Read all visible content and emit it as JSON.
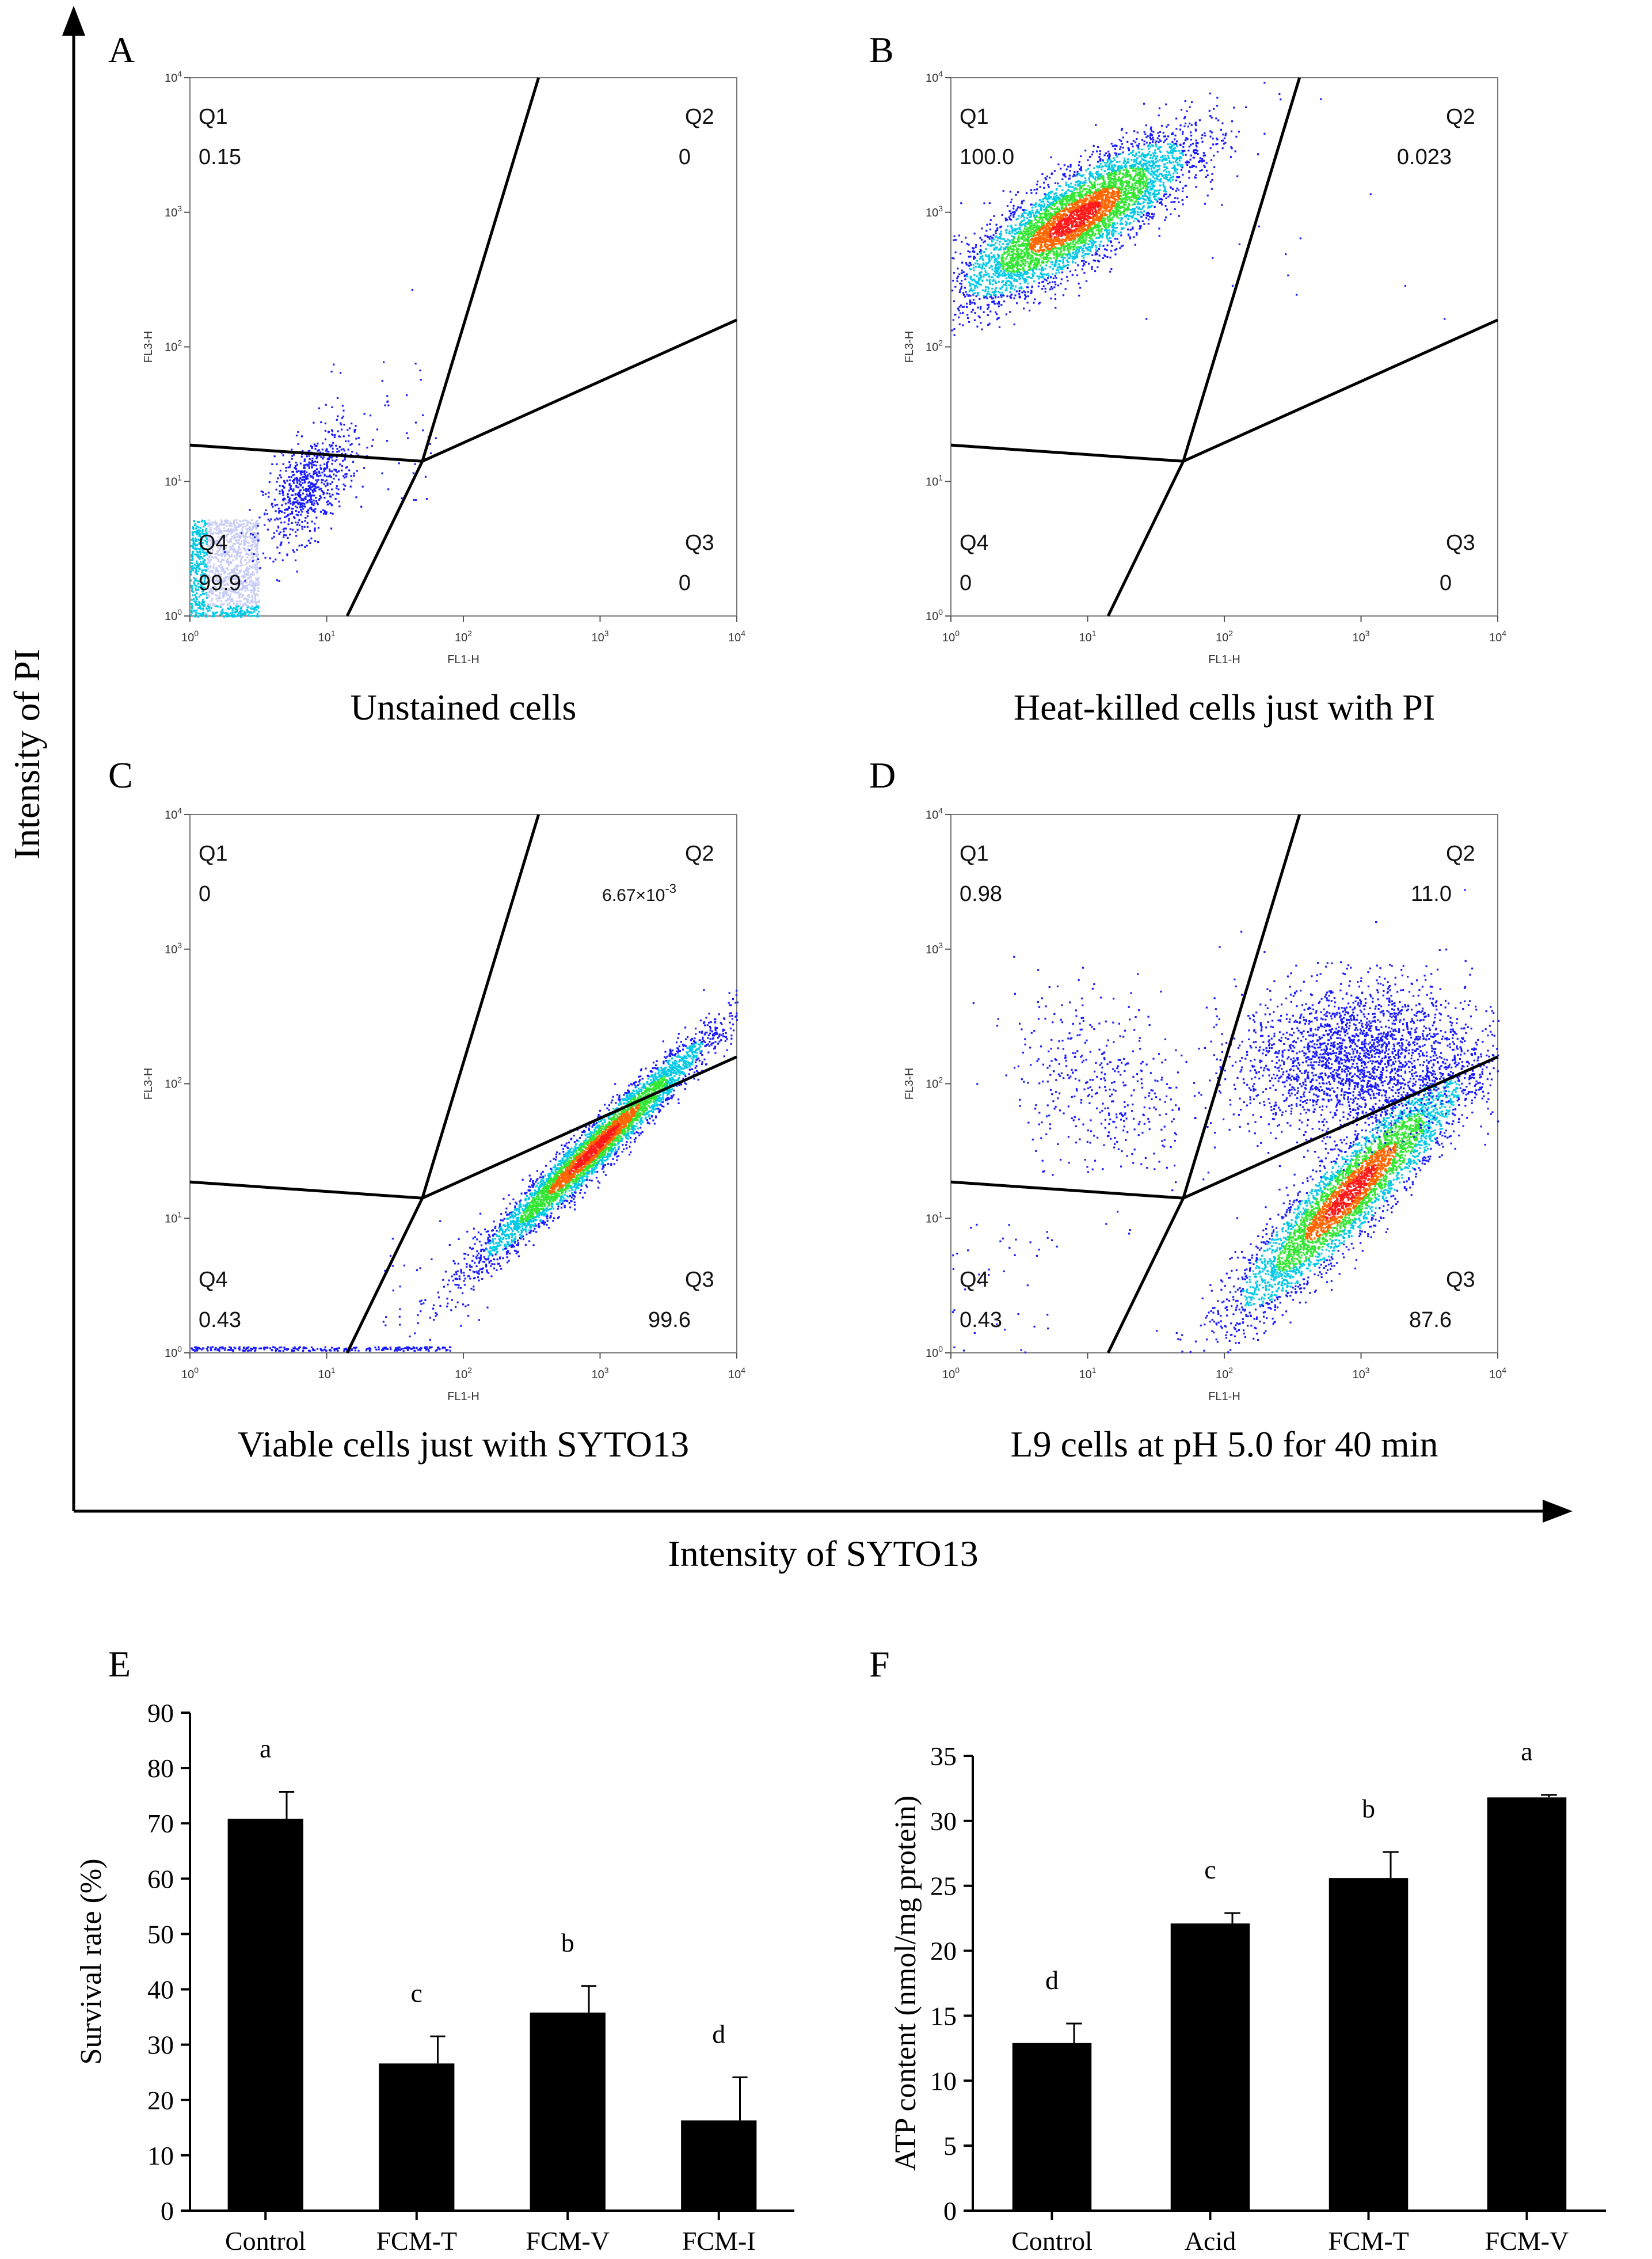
{
  "chart_data": [
    {
      "type": "scatter",
      "panel": "A",
      "title": "Unstained cells",
      "xlabel": "FL1-H",
      "ylabel": "FL3-H",
      "x_ticks": [
        "0",
        "1",
        "2",
        "3",
        "4"
      ],
      "y_ticks": [
        "0",
        "1",
        "2",
        "3",
        "4"
      ],
      "quadrants": [
        {
          "name": "Q1",
          "value": "0.15"
        },
        {
          "name": "Q2",
          "value": "0"
        },
        {
          "name": "Q3",
          "value": "0"
        },
        {
          "name": "Q4",
          "value": "99.9"
        }
      ]
    },
    {
      "type": "scatter",
      "panel": "B",
      "title": "Heat-killed cells just with PI",
      "xlabel": "FL1-H",
      "ylabel": "FL3-H",
      "x_ticks": [
        "0",
        "1",
        "2",
        "3",
        "4"
      ],
      "y_ticks": [
        "0",
        "1",
        "2",
        "3",
        "4"
      ],
      "quadrants": [
        {
          "name": "Q1",
          "value": "100.0"
        },
        {
          "name": "Q2",
          "value": "0.023"
        },
        {
          "name": "Q3",
          "value": "0"
        },
        {
          "name": "Q4",
          "value": "0"
        }
      ]
    },
    {
      "type": "scatter",
      "panel": "C",
      "title": "Viable cells just with SYTO13",
      "xlabel": "FL1-H",
      "ylabel": "FL3-H",
      "x_ticks": [
        "0",
        "1",
        "2",
        "3",
        "4"
      ],
      "y_ticks": [
        "0",
        "1",
        "2",
        "3",
        "4"
      ],
      "quadrants": [
        {
          "name": "Q1",
          "value": "0"
        },
        {
          "name": "Q2",
          "value": "6.67×10",
          "exp": "-3"
        },
        {
          "name": "Q3",
          "value": "99.6"
        },
        {
          "name": "Q4",
          "value": "0.43"
        }
      ]
    },
    {
      "type": "scatter",
      "panel": "D",
      "title": "L9 cells at pH 5.0 for 40 min",
      "xlabel": "FL1-H",
      "ylabel": "FL3-H",
      "x_ticks": [
        "0",
        "1",
        "2",
        "3",
        "4"
      ],
      "y_ticks": [
        "0",
        "1",
        "2",
        "3",
        "4"
      ],
      "quadrants": [
        {
          "name": "Q1",
          "value": "0.98"
        },
        {
          "name": "Q2",
          "value": "11.0"
        },
        {
          "name": "Q3",
          "value": "87.6"
        },
        {
          "name": "Q4",
          "value": "0.43"
        }
      ]
    },
    {
      "type": "bar",
      "panel": "E",
      "title": "",
      "xlabel": "",
      "ylabel": "Survival rate (%)",
      "categories": [
        "Control",
        "FCM-T",
        "FCM-V",
        "FCM-I"
      ],
      "values": [
        70.8,
        26.6,
        35.8,
        16.3
      ],
      "errors": [
        4.9,
        4.9,
        4.8,
        7.8
      ],
      "letters": [
        "a",
        "c",
        "b",
        "d"
      ],
      "ylim": [
        0,
        90
      ],
      "yticks": [
        0,
        10,
        20,
        30,
        40,
        50,
        60,
        70,
        80,
        90
      ]
    },
    {
      "type": "bar",
      "panel": "F",
      "title": "",
      "xlabel": "",
      "ylabel": "ATP content (nmol/mg protein)",
      "categories": [
        "Control",
        "Acid",
        "FCM-T",
        "FCM-V"
      ],
      "values": [
        12.9,
        22.1,
        25.6,
        31.8
      ],
      "errors": [
        1.5,
        0.8,
        2.0,
        0.2
      ],
      "letters": [
        "d",
        "c",
        "b",
        "a"
      ],
      "ylim": [
        0,
        35
      ],
      "yticks": [
        0,
        5,
        10,
        15,
        20,
        25,
        30,
        35
      ]
    }
  ],
  "shared_axes": {
    "y_label": "Intensity of PI",
    "x_label": "Intensity of SYTO13"
  },
  "colors": {
    "ink": "#000000",
    "dot_sparse": "#1a1aff",
    "dot_medium": "#00c8e6",
    "dot_dense": "#33e633",
    "dot_peak": "#ff6600",
    "dot_core": "#ff1a1a",
    "bar_fill": "#000000"
  }
}
